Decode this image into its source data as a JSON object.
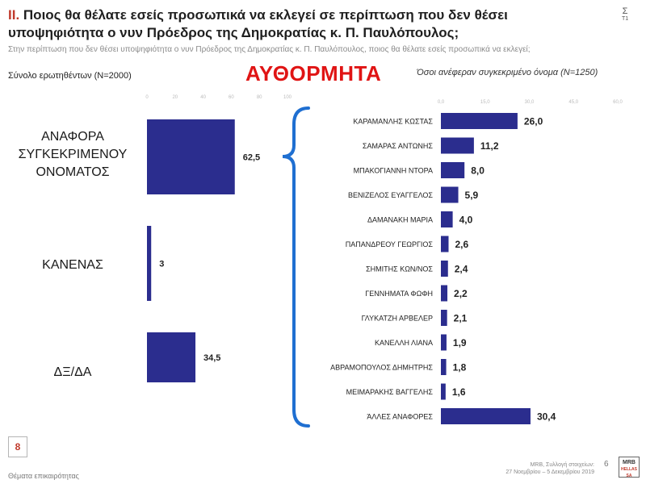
{
  "header": {
    "number": "ΙΙ.",
    "title": "Ποιος θα θέλατε εσείς προσωπικά να εκλεγεί σε περίπτωση που δεν θέσει υποψηφιότητα ο νυν Πρόεδρος της Δημοκρατίας κ. Π. Παυλόπουλος;",
    "subtitle": "Στην περίπτωση που δεν θέσει υποψηφιότητα ο νυν Πρόεδρος της Δημοκρατίας κ. Π. Παυλόπουλος, ποιος θα θέλατε εσείς προσωπικά να εκλεγεί;",
    "base_left": "Σύνολο ερωτηθέντων (N=2000)",
    "spontaneous": "ΑΥΘΟΡΜΗΤΑ",
    "base_right": "Όσοι ανέφεραν συγκεκριμένο όνομα (N=1250)",
    "sigma": "Σ",
    "sigma_sub": "Τ1"
  },
  "chart_data": [
    {
      "type": "bar",
      "orientation": "horizontal",
      "categories": [
        "ΑΝΑΦΟΡΑ ΣΥΓΚΕΚΡΙΜΕΝΟΥ ΟΝΟΜΑΤΟΣ",
        "ΚΑΝΕΝΑΣ",
        "ΔΞ/ΔΑ"
      ],
      "category_lines": [
        [
          "ΑΝΑΦΟΡΑ",
          "ΣΥΓΚΕΚΡΙΜΕΝΟΥ",
          "ΟΝΟΜΑΤΟΣ"
        ],
        [
          "ΚΑΝΕΝΑΣ"
        ],
        [
          "ΔΞ/ΔΑ"
        ]
      ],
      "values": [
        62.5,
        3,
        34.5
      ],
      "value_labels": [
        "62,5",
        "3",
        "34,5"
      ],
      "xlim": [
        0,
        100
      ],
      "ticks": [
        0,
        20,
        40,
        60,
        80,
        100
      ],
      "color": "#2b2d8e"
    },
    {
      "type": "bar",
      "orientation": "horizontal",
      "categories": [
        "ΚΑΡΑΜΑΝΛΗΣ ΚΩΣΤΑΣ",
        "ΣΑΜΑΡΑΣ ΑΝΤΩΝΗΣ",
        "ΜΠΑΚΟΓΙΑΝΝΗ ΝΤΟΡΑ",
        "ΒΕΝΙΖΕΛΟΣ ΕΥΑΓΓΕΛΟΣ",
        "ΔΑΜΑΝΑΚΗ ΜΑΡΙΑ",
        "ΠΑΠΑΝΔΡΕΟΥ ΓΕΩΡΓΙΟΣ",
        "ΣΗΜΙΤΗΣ ΚΩΝ/ΝΟΣ",
        "ΓΕΝΝΗΜΑΤΑ ΦΩΦΗ",
        "ΓΛΥΚΑΤΖΗ ΑΡΒΕΛΕΡ",
        "ΚΑΝΕΛΛΗ ΛΙΑΝΑ",
        "ΑΒΡΑΜΟΠΟΥΛΟΣ ΔΗΜΗΤΡΗΣ",
        "ΜΕΙΜΑΡΑΚΗΣ ΒΑΓΓΕΛΗΣ",
        "ΆΛΛΕΣ ΑΝΑΦΟΡΕΣ"
      ],
      "values": [
        26.0,
        11.2,
        8.0,
        5.9,
        4.0,
        2.6,
        2.4,
        2.2,
        2.1,
        1.9,
        1.8,
        1.6,
        30.4
      ],
      "value_labels": [
        "26,0",
        "11,2",
        "8,0",
        "5,9",
        "4,0",
        "2,6",
        "2,4",
        "2,2",
        "2,1",
        "1,9",
        "1,8",
        "1,6",
        "30,4"
      ],
      "xlim": [
        0,
        60
      ],
      "ticks": [
        0,
        15,
        30,
        45,
        60
      ],
      "tick_labels": [
        "0,0",
        "15,0",
        "30,0",
        "45,0",
        "60,0"
      ],
      "color": "#2b2d8e"
    }
  ],
  "footer": {
    "page_box": "8",
    "left_text": "Θέματα επικαιρότητας",
    "source_line1": "MRB, Συλλογή στοιχείων:",
    "source_line2": "27 Νοεμβρίου – 5 Δεκεμβρίου 2019",
    "page_number": "6",
    "logo_text": "MRB",
    "logo_sub": "HELLAS SA"
  }
}
